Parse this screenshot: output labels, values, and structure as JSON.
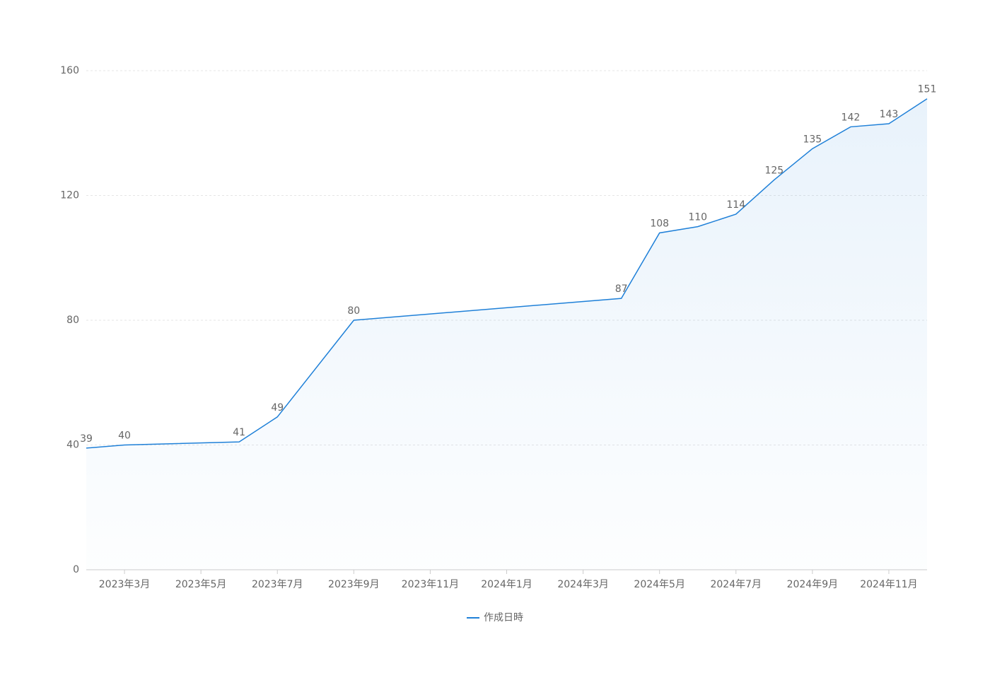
{
  "chart_data": {
    "type": "area",
    "x": [
      "2023-02",
      "2023-03",
      "2023-06",
      "2023-07",
      "2023-09",
      "2024-04",
      "2024-05",
      "2024-06",
      "2024-07",
      "2024-08",
      "2024-09",
      "2024-10",
      "2024-11",
      "2024-12"
    ],
    "series": [
      {
        "name": "作成日時",
        "color": "#1f80d8",
        "values": [
          39,
          40,
          41,
          49,
          80,
          87,
          108,
          110,
          114,
          125,
          135,
          142,
          143,
          151
        ]
      }
    ],
    "xlim": [
      "2023-02",
      "2024-12"
    ],
    "xticks": [
      {
        "value": "2023-03",
        "label": "2023年3月"
      },
      {
        "value": "2023-05",
        "label": "2023年5月"
      },
      {
        "value": "2023-07",
        "label": "2023年7月"
      },
      {
        "value": "2023-09",
        "label": "2023年9月"
      },
      {
        "value": "2023-11",
        "label": "2023年11月"
      },
      {
        "value": "2024-01",
        "label": "2024年1月"
      },
      {
        "value": "2024-03",
        "label": "2024年3月"
      },
      {
        "value": "2024-05",
        "label": "2024年5月"
      },
      {
        "value": "2024-07",
        "label": "2024年7月"
      },
      {
        "value": "2024-09",
        "label": "2024年9月"
      },
      {
        "value": "2024-11",
        "label": "2024年11月"
      }
    ],
    "ylim": [
      0,
      160
    ],
    "yticks": [
      0,
      40,
      80,
      120,
      160
    ],
    "grid": true,
    "legend": "bottom"
  }
}
